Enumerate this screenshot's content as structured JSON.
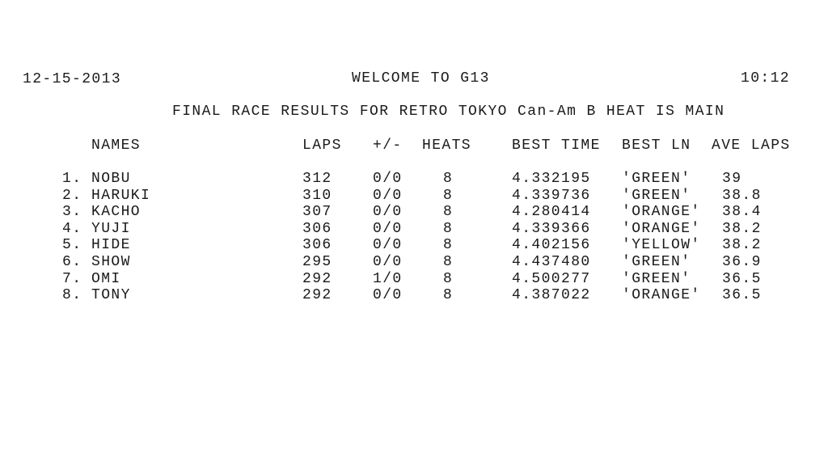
{
  "header": {
    "date": "12-15-2013",
    "welcome": "WELCOME TO G13",
    "time": "10:12"
  },
  "title": "FINAL RACE RESULTS FOR RETRO TOKYO Can-Am B HEAT IS MAIN",
  "columns": {
    "names": "NAMES",
    "laps": "LAPS",
    "plus_minus": "+/-",
    "heats": "HEATS",
    "best_time": "BEST TIME",
    "best_ln": "BEST LN",
    "ave_laps": "AVE LAPS"
  },
  "rows": [
    {
      "rank": "1.",
      "name": "NOBU",
      "laps": "312",
      "plus_minus": "0/0",
      "heats": "8",
      "best_time": "4.332195",
      "best_ln": "'GREEN'",
      "ave_laps": "39"
    },
    {
      "rank": "2.",
      "name": "HARUKI",
      "laps": "310",
      "plus_minus": "0/0",
      "heats": "8",
      "best_time": "4.339736",
      "best_ln": "'GREEN'",
      "ave_laps": "38.8"
    },
    {
      "rank": "3.",
      "name": "KACHO",
      "laps": "307",
      "plus_minus": "0/0",
      "heats": "8",
      "best_time": "4.280414",
      "best_ln": "'ORANGE'",
      "ave_laps": "38.4"
    },
    {
      "rank": "4.",
      "name": "YUJI",
      "laps": "306",
      "plus_minus": "0/0",
      "heats": "8",
      "best_time": "4.339366",
      "best_ln": "'ORANGE'",
      "ave_laps": "38.2"
    },
    {
      "rank": "5.",
      "name": "HIDE",
      "laps": "306",
      "plus_minus": "0/0",
      "heats": "8",
      "best_time": "4.402156",
      "best_ln": "'YELLOW'",
      "ave_laps": "38.2"
    },
    {
      "rank": "6.",
      "name": "SHOW",
      "laps": "295",
      "plus_minus": "0/0",
      "heats": "8",
      "best_time": "4.437480",
      "best_ln": "'GREEN'",
      "ave_laps": "36.9"
    },
    {
      "rank": "7.",
      "name": "OMI",
      "laps": "292",
      "plus_minus": "1/0",
      "heats": "8",
      "best_time": "4.500277",
      "best_ln": "'GREEN'",
      "ave_laps": "36.5"
    },
    {
      "rank": "8.",
      "name": "TONY",
      "laps": "292",
      "plus_minus": "0/0",
      "heats": "8",
      "best_time": "4.387022",
      "best_ln": "'ORANGE'",
      "ave_laps": "36.5"
    }
  ]
}
